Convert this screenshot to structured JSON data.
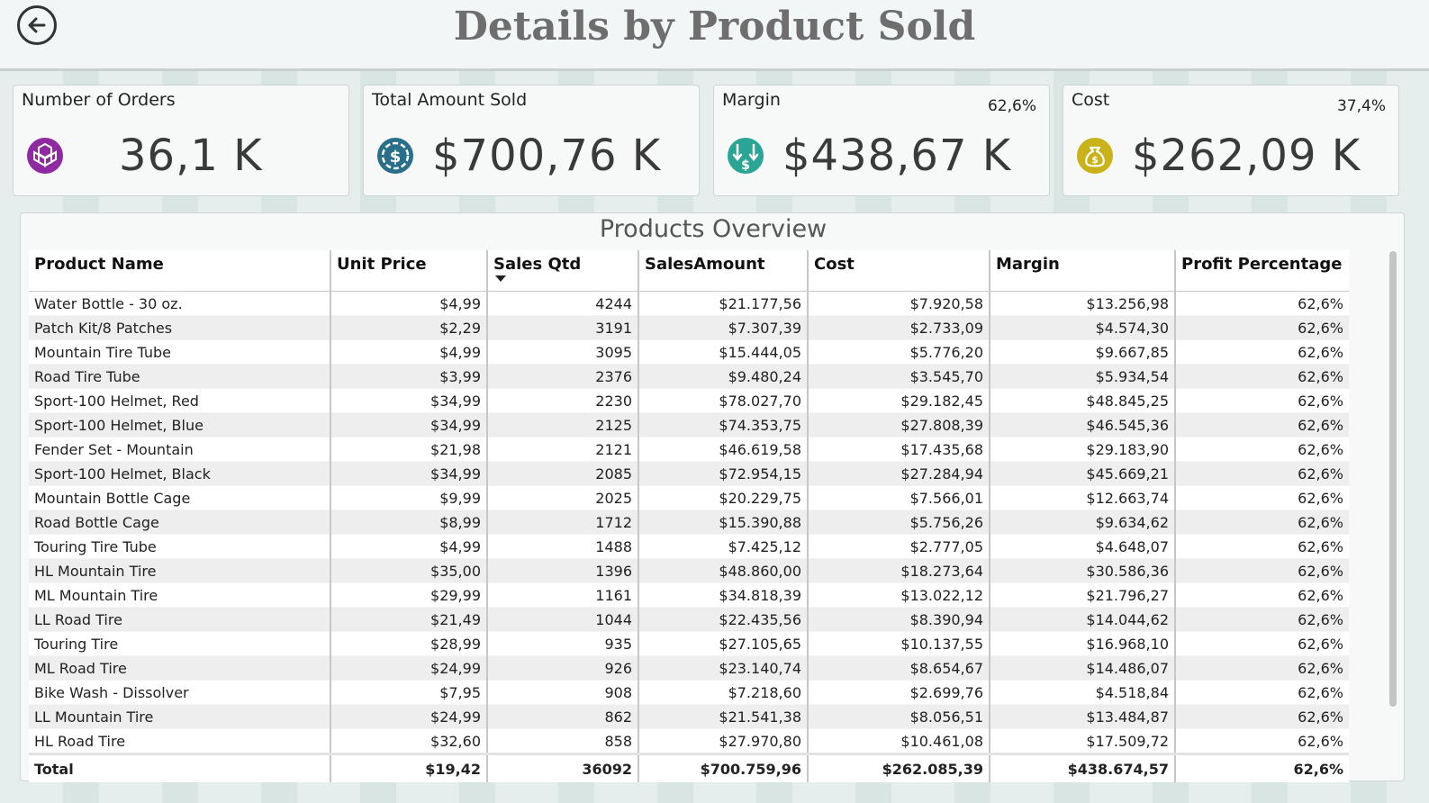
{
  "page": {
    "title": "Details by Product Sold"
  },
  "kpis": [
    {
      "label": "Number of Orders",
      "value": "36,1 K",
      "pct": "",
      "icon": "cubes-icon",
      "color": "#8e2ba0"
    },
    {
      "label": "Total Amount Sold",
      "value": "$700,76 K",
      "pct": "",
      "icon": "dollar-coin-icon",
      "color": "#2a6f8a"
    },
    {
      "label": "Margin",
      "value": "$438,67 K",
      "pct": "62,6%",
      "icon": "money-flow-icon",
      "color": "#2aa595"
    },
    {
      "label": "Cost",
      "value": "$262,09 K",
      "pct": "37,4%",
      "icon": "money-bag-icon",
      "color": "#c9b21a"
    }
  ],
  "table": {
    "title": "Products Overview",
    "columns": [
      "Product Name",
      "Unit Price",
      "Sales Qtd",
      "SalesAmount",
      "Cost",
      "Margin",
      "Profit Percentage"
    ],
    "rows": [
      [
        "Water Bottle - 30 oz.",
        "$4,99",
        "4244",
        "$21.177,56",
        "$7.920,58",
        "$13.256,98",
        "62,6%"
      ],
      [
        "Patch Kit/8 Patches",
        "$2,29",
        "3191",
        "$7.307,39",
        "$2.733,09",
        "$4.574,30",
        "62,6%"
      ],
      [
        "Mountain Tire Tube",
        "$4,99",
        "3095",
        "$15.444,05",
        "$5.776,20",
        "$9.667,85",
        "62,6%"
      ],
      [
        "Road Tire Tube",
        "$3,99",
        "2376",
        "$9.480,24",
        "$3.545,70",
        "$5.934,54",
        "62,6%"
      ],
      [
        "Sport-100 Helmet, Red",
        "$34,99",
        "2230",
        "$78.027,70",
        "$29.182,45",
        "$48.845,25",
        "62,6%"
      ],
      [
        "Sport-100 Helmet, Blue",
        "$34,99",
        "2125",
        "$74.353,75",
        "$27.808,39",
        "$46.545,36",
        "62,6%"
      ],
      [
        "Fender Set - Mountain",
        "$21,98",
        "2121",
        "$46.619,58",
        "$17.435,68",
        "$29.183,90",
        "62,6%"
      ],
      [
        "Sport-100 Helmet, Black",
        "$34,99",
        "2085",
        "$72.954,15",
        "$27.284,94",
        "$45.669,21",
        "62,6%"
      ],
      [
        "Mountain Bottle Cage",
        "$9,99",
        "2025",
        "$20.229,75",
        "$7.566,01",
        "$12.663,74",
        "62,6%"
      ],
      [
        "Road Bottle Cage",
        "$8,99",
        "1712",
        "$15.390,88",
        "$5.756,26",
        "$9.634,62",
        "62,6%"
      ],
      [
        "Touring Tire Tube",
        "$4,99",
        "1488",
        "$7.425,12",
        "$2.777,05",
        "$4.648,07",
        "62,6%"
      ],
      [
        "HL Mountain Tire",
        "$35,00",
        "1396",
        "$48.860,00",
        "$18.273,64",
        "$30.586,36",
        "62,6%"
      ],
      [
        "ML Mountain Tire",
        "$29,99",
        "1161",
        "$34.818,39",
        "$13.022,12",
        "$21.796,27",
        "62,6%"
      ],
      [
        "LL Road Tire",
        "$21,49",
        "1044",
        "$22.435,56",
        "$8.390,94",
        "$14.044,62",
        "62,6%"
      ],
      [
        "Touring Tire",
        "$28,99",
        "935",
        "$27.105,65",
        "$10.137,55",
        "$16.968,10",
        "62,6%"
      ],
      [
        "ML Road Tire",
        "$24,99",
        "926",
        "$23.140,74",
        "$8.654,67",
        "$14.486,07",
        "62,6%"
      ],
      [
        "Bike Wash - Dissolver",
        "$7,95",
        "908",
        "$7.218,60",
        "$2.699,76",
        "$4.518,84",
        "62,6%"
      ],
      [
        "LL Mountain Tire",
        "$24,99",
        "862",
        "$21.541,38",
        "$8.056,51",
        "$13.484,87",
        "62,6%"
      ],
      [
        "HL Road Tire",
        "$32,60",
        "858",
        "$27.970,80",
        "$10.461,08",
        "$17.509,72",
        "62,6%"
      ]
    ],
    "total": [
      "Total",
      "$19,42",
      "36092",
      "$700.759,96",
      "$262.085,39",
      "$438.674,57",
      "62,6%"
    ]
  }
}
